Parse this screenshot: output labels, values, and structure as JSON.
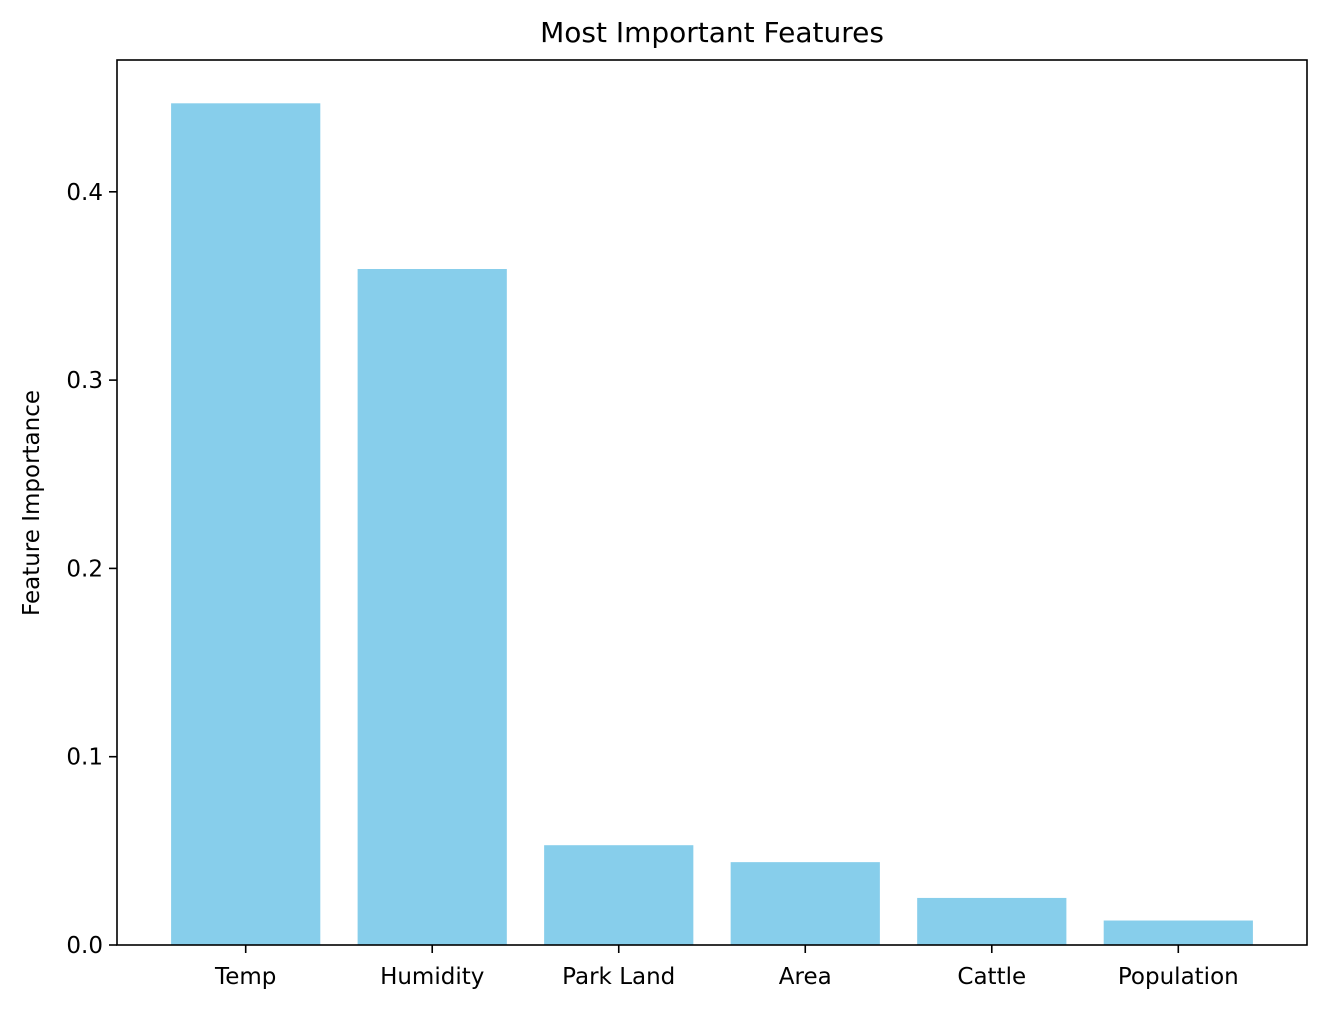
{
  "chart_data": {
    "type": "bar",
    "title": "Most Important Features",
    "xlabel": "",
    "ylabel": "Feature Importance",
    "categories": [
      "Temp",
      "Humidity",
      "Park Land",
      "Area",
      "Cattle",
      "Population"
    ],
    "values": [
      0.447,
      0.359,
      0.053,
      0.044,
      0.025,
      0.013
    ],
    "ylim": [
      0,
      0.47
    ],
    "yticks": [
      0.0,
      0.1,
      0.2,
      0.3,
      0.4
    ],
    "ytick_labels": [
      "0.0",
      "0.1",
      "0.2",
      "0.3",
      "0.4"
    ],
    "grid": false,
    "legend": "none",
    "bar_color": "#87CEEB"
  }
}
